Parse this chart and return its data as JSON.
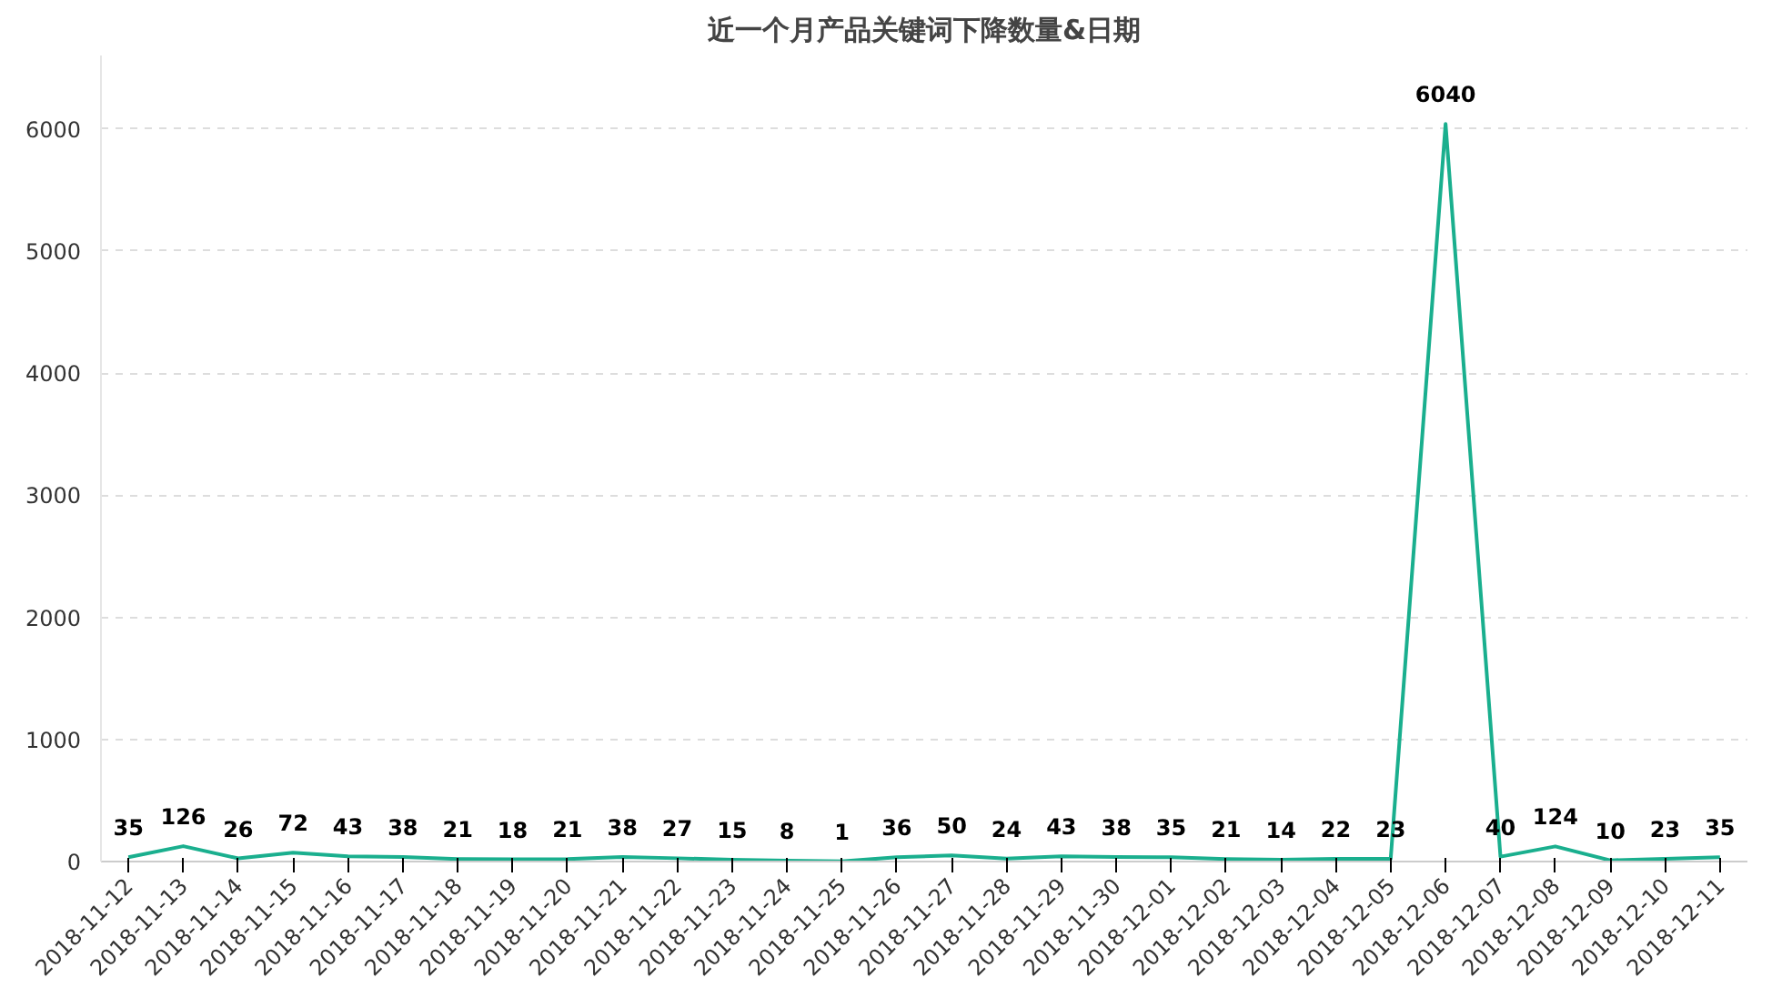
{
  "chart_data": {
    "type": "line",
    "title": "近一个月产品关键词下降数量&日期",
    "categories": [
      "2018-11-12",
      "2018-11-13",
      "2018-11-14",
      "2018-11-15",
      "2018-11-16",
      "2018-11-17",
      "2018-11-18",
      "2018-11-19",
      "2018-11-20",
      "2018-11-21",
      "2018-11-22",
      "2018-11-23",
      "2018-11-24",
      "2018-11-25",
      "2018-11-26",
      "2018-11-27",
      "2018-11-28",
      "2018-11-29",
      "2018-11-30",
      "2018-12-01",
      "2018-12-02",
      "2018-12-03",
      "2018-12-04",
      "2018-12-05",
      "2018-12-06",
      "2018-12-07",
      "2018-12-08",
      "2018-12-09",
      "2018-12-10",
      "2018-12-11"
    ],
    "series": [
      {
        "color": "#1aaf8e",
        "values": [
          35,
          126,
          26,
          72,
          43,
          38,
          21,
          18,
          21,
          38,
          27,
          15,
          8,
          1,
          36,
          50,
          24,
          43,
          38,
          35,
          21,
          14,
          22,
          23,
          6040,
          40,
          124,
          10,
          23,
          35
        ]
      }
    ],
    "ylim": [
      0,
      6600
    ],
    "yticks": [
      0,
      1000,
      2000,
      3000,
      4000,
      5000,
      6000
    ],
    "grid": "y",
    "data_labels": true,
    "marker": "none",
    "line_style": "solid"
  }
}
